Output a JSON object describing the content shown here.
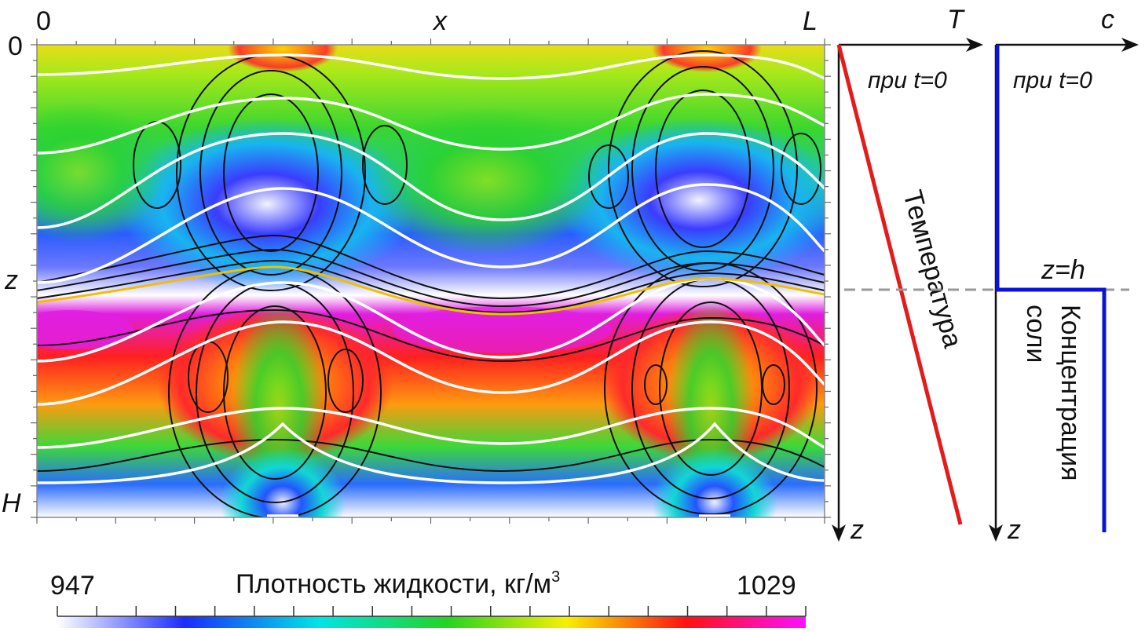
{
  "plot": {
    "x_origin_label": "0",
    "x_axis_label": "x",
    "x_end_label": "L",
    "z_origin_label": "0",
    "z_axis_label": "z",
    "z_end_label": "H"
  },
  "temperature_panel": {
    "axis_label": "T",
    "note": "при t=0",
    "curve_label": "Температура",
    "z_label": "z",
    "color": "#e31b1b"
  },
  "salt_panel": {
    "axis_label": "c",
    "note": "при t=0",
    "curve_label_line1": "Концентрация",
    "curve_label_line2": "соли",
    "z_label": "z",
    "interface_label": "z=h",
    "color": "#0a14d8"
  },
  "colorbar": {
    "min_label": "947",
    "max_label": "1029",
    "title": "Плотность жидкости, кг/м",
    "title_superscript": "3",
    "stops": [
      "#ffffff",
      "#1a2cff",
      "#00e5e5",
      "#22d422",
      "#f6f000",
      "#ff1010",
      "#ff10ff"
    ]
  }
}
